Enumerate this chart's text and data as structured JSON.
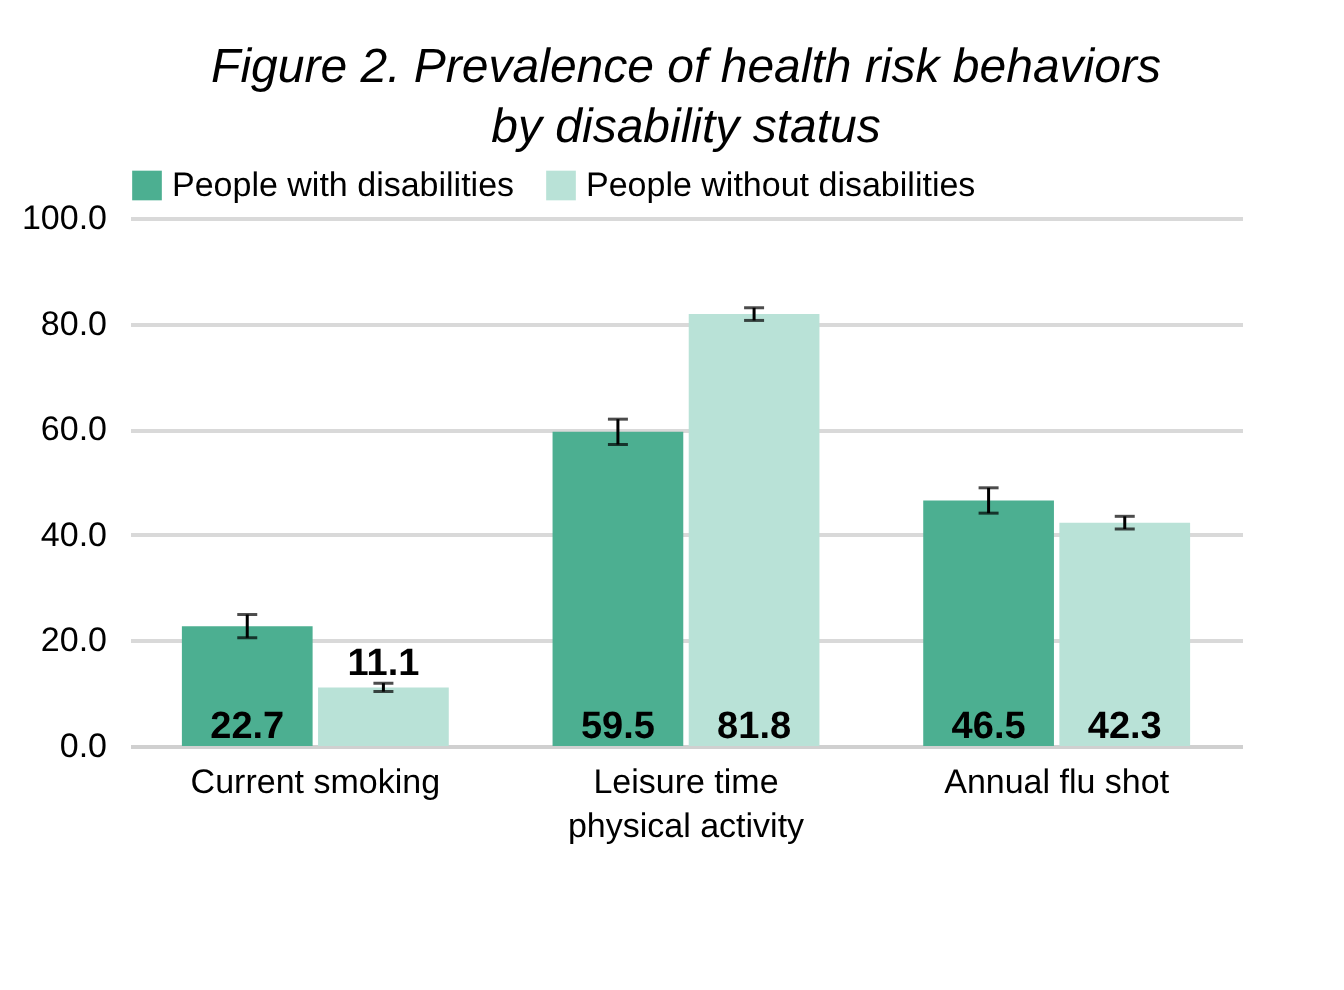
{
  "chart_data": {
    "type": "bar",
    "title": "Figure 2. Prevalence of health risk behaviors\nby disability status",
    "categories": [
      "Current smoking",
      "Leisure time\nphysical activity",
      "Annual flu shot"
    ],
    "series": [
      {
        "name": "People with disabilities",
        "color": "#4caf91",
        "values": [
          22.7,
          59.5,
          46.5
        ],
        "errors": [
          2.2,
          2.4,
          2.4
        ]
      },
      {
        "name": "People without disabilities",
        "color": "#b9e2d7",
        "values": [
          11.1,
          81.8,
          42.3
        ],
        "errors": [
          0.8,
          1.2,
          1.2
        ]
      }
    ],
    "ylim": [
      0,
      100
    ],
    "yticks": [
      {
        "value": 0,
        "label": "0.0"
      },
      {
        "value": 20,
        "label": "20.0"
      },
      {
        "value": 40,
        "label": "40.0"
      },
      {
        "value": 60,
        "label": "60.0"
      },
      {
        "value": 80,
        "label": "80.0"
      },
      {
        "value": 100,
        "label": "100.0"
      }
    ],
    "grid": "y",
    "legend": "top",
    "data_labels": true
  }
}
